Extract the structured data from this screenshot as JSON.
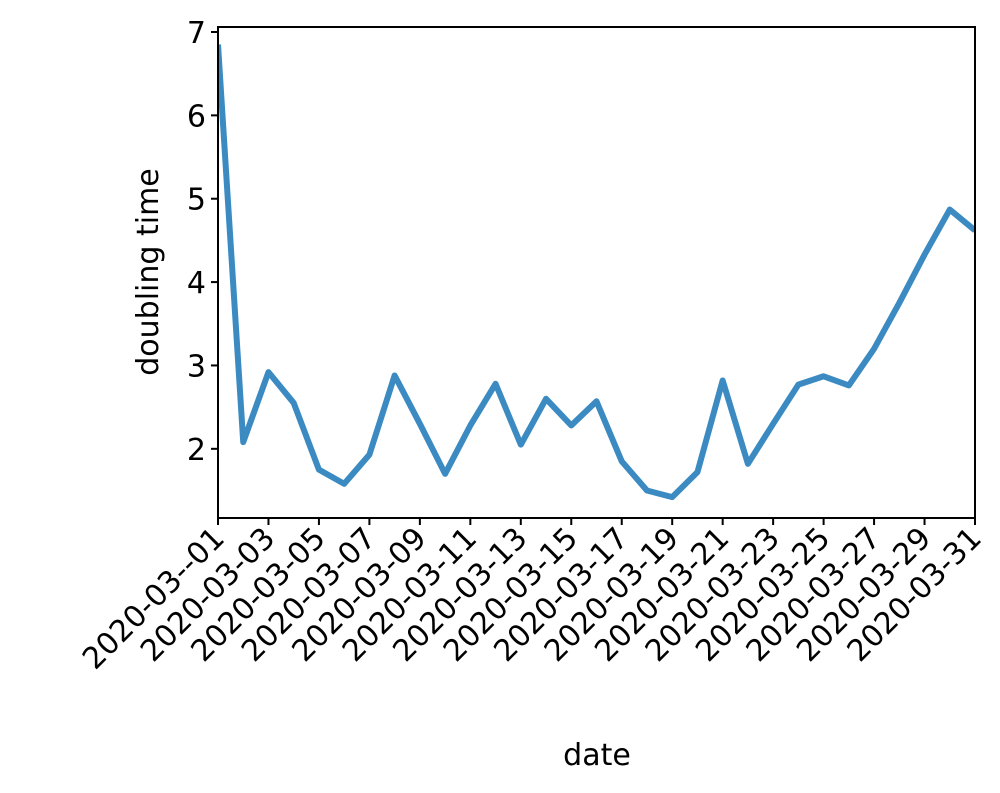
{
  "chart_data": {
    "type": "line",
    "x_label": "date",
    "y_label": "doubling time",
    "x": [
      "2020-03-01",
      "2020-03-02",
      "2020-03-03",
      "2020-03-04",
      "2020-03-05",
      "2020-03-06",
      "2020-03-07",
      "2020-03-08",
      "2020-03-09",
      "2020-03-10",
      "2020-03-11",
      "2020-03-12",
      "2020-03-13",
      "2020-03-14",
      "2020-03-15",
      "2020-03-16",
      "2020-03-17",
      "2020-03-18",
      "2020-03-19",
      "2020-03-20",
      "2020-03-21",
      "2020-03-22",
      "2020-03-23",
      "2020-03-24",
      "2020-03-25",
      "2020-03-26",
      "2020-03-27",
      "2020-03-28",
      "2020-03-29",
      "2020-03-30",
      "2020-03-31"
    ],
    "series": [
      {
        "color": "#3b8bc2",
        "values": [
          6.85,
          2.08,
          2.92,
          2.55,
          1.75,
          1.58,
          1.93,
          2.88,
          2.3,
          1.7,
          2.28,
          2.78,
          2.05,
          2.6,
          2.28,
          2.57,
          1.85,
          1.5,
          1.42,
          1.72,
          2.82,
          1.82,
          2.3,
          2.77,
          2.87,
          2.76,
          3.2,
          3.75,
          4.33,
          4.87,
          4.62
        ]
      }
    ],
    "xlim": [
      "2020-03-01",
      "2020-03-31"
    ],
    "xticks": [
      {
        "value": "2020-03-01",
        "label": "2020-03--01"
      },
      "2020-03-03",
      "2020-03-05",
      "2020-03-07",
      "2020-03-09",
      "2020-03-11",
      "2020-03-13",
      "2020-03-15",
      "2020-03-17",
      "2020-03-19",
      "2020-03-21",
      "2020-03-23",
      "2020-03-25",
      "2020-03-27",
      "2020-03-29",
      "2020-03-31"
    ],
    "ylim": [
      1.17,
      7.06
    ],
    "yticks": [
      2,
      3,
      4,
      5,
      6,
      7
    ],
    "grid": false
  }
}
